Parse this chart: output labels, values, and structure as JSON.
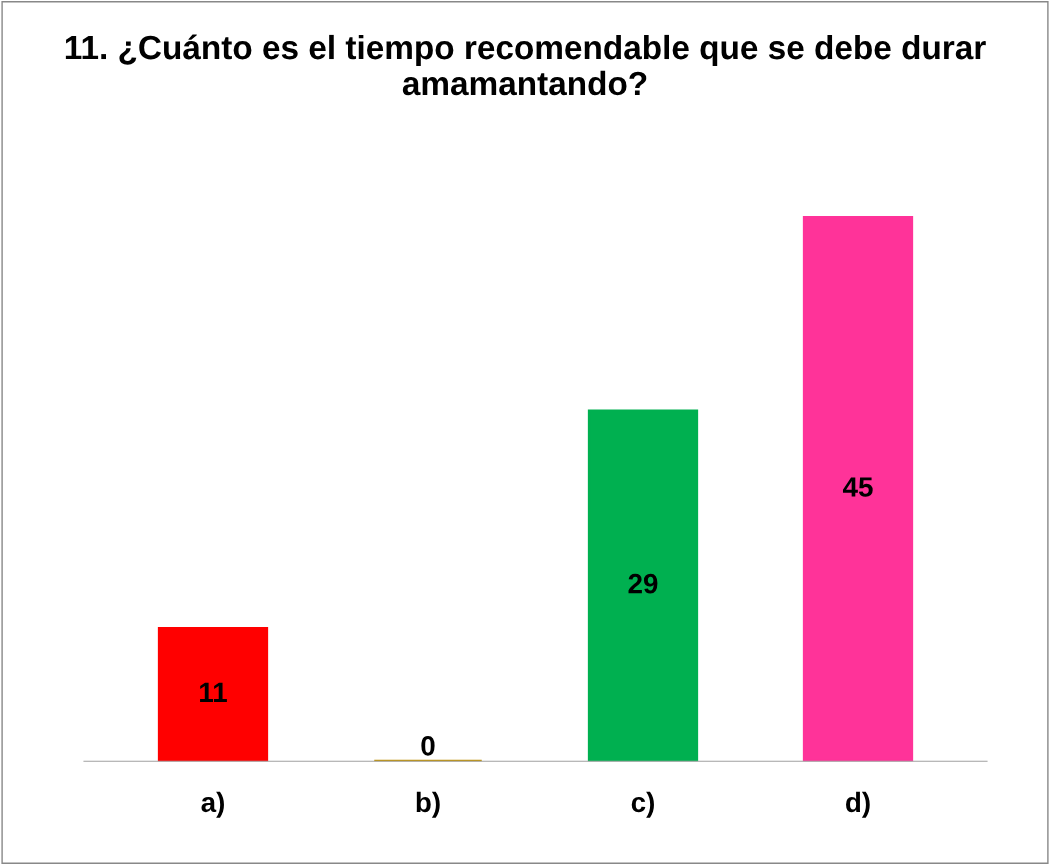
{
  "chart_data": {
    "type": "bar",
    "title": "11. ¿Cuánto es el tiempo recomendable que se debe durar amamantando?",
    "categories": [
      "a)",
      "b)",
      "c)",
      "d)"
    ],
    "values": [
      11,
      0,
      29,
      45
    ],
    "colors": [
      "#ff0000",
      "#c09000",
      "#00b050",
      "#ff3399"
    ],
    "data_labels": true,
    "tick_labels": "x",
    "grid": false,
    "legend": false
  }
}
